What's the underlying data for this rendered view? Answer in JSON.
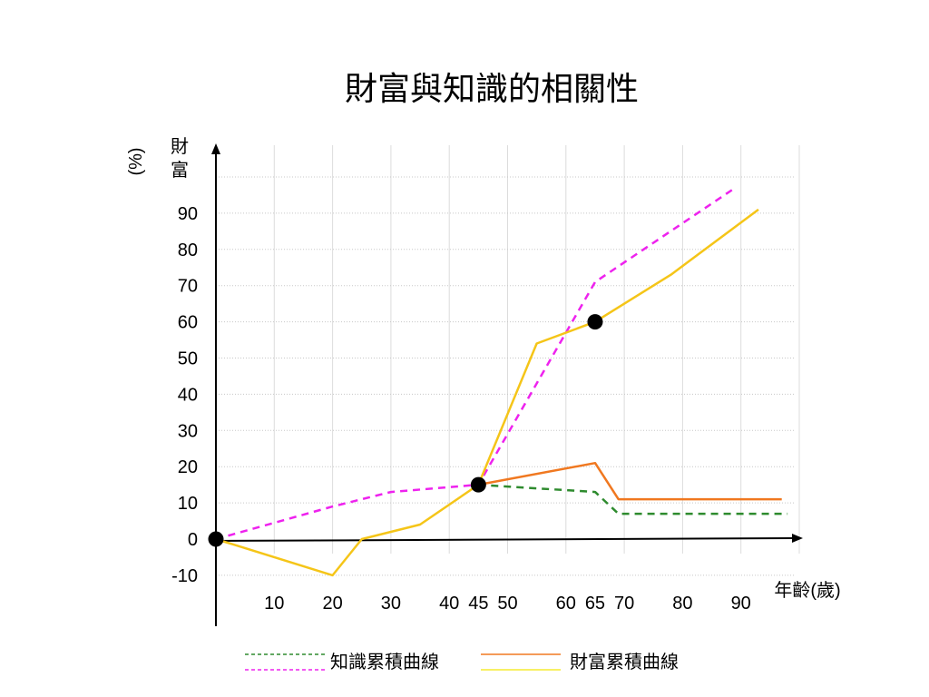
{
  "chart_data": {
    "type": "line",
    "title": "財富與知識的相關性",
    "ylabel_chars": [
      "財",
      "富"
    ],
    "ylabel_unit": "(%)",
    "xlabel": "年齡(歲)",
    "xlim": [
      0,
      100
    ],
    "ylim": [
      -10,
      100
    ],
    "x_ticks": [
      10,
      20,
      30,
      40,
      45,
      50,
      60,
      65,
      70,
      80,
      90
    ],
    "y_ticks": [
      -10,
      0,
      10,
      20,
      30,
      40,
      50,
      60,
      70,
      80,
      90
    ],
    "grid": true,
    "colors": {
      "knowledge_base": "#2e8b2e",
      "knowledge_upper": "#ee22ee",
      "wealth_base": "#f07820",
      "wealth_upper": "#f5c518"
    },
    "series": [
      {
        "key": "knowledge_upper",
        "dashed": true,
        "points": [
          [
            0,
            0
          ],
          [
            20,
            9
          ],
          [
            30,
            13
          ],
          [
            45,
            15
          ],
          [
            65,
            71
          ],
          [
            89,
            97
          ]
        ]
      },
      {
        "key": "wealth_upper",
        "dashed": false,
        "points": [
          [
            0,
            0
          ],
          [
            20,
            -10
          ],
          [
            25,
            0
          ],
          [
            35,
            4
          ],
          [
            45,
            15
          ],
          [
            55,
            54
          ],
          [
            65,
            60
          ],
          [
            78,
            73
          ],
          [
            93,
            91
          ]
        ]
      },
      {
        "key": "knowledge_base",
        "dashed": true,
        "points": [
          [
            45,
            15
          ],
          [
            65,
            13
          ],
          [
            69,
            7
          ],
          [
            98,
            7
          ]
        ]
      },
      {
        "key": "wealth_base",
        "dashed": false,
        "points": [
          [
            45,
            15
          ],
          [
            65,
            21
          ],
          [
            69,
            11
          ],
          [
            97,
            11
          ]
        ]
      }
    ],
    "markers": [
      [
        0,
        0
      ],
      [
        45,
        15
      ],
      [
        65,
        60
      ]
    ],
    "legend": {
      "knowledge": "知識累積曲線",
      "wealth": "財富累積曲線"
    }
  }
}
